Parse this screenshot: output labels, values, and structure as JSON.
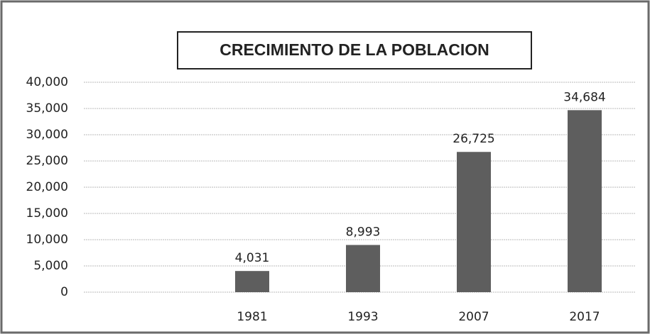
{
  "chart_data": {
    "type": "bar",
    "title": "CRECIMIENTO DE LA POBLACION",
    "categories": [
      "1981",
      "1993",
      "2007",
      "2017"
    ],
    "values": [
      4031,
      8993,
      26725,
      34684
    ],
    "value_labels": [
      "4,031",
      "8,993",
      "26,725",
      "34,684"
    ],
    "color": "#5e5e5e",
    "ylim": [
      0,
      40000
    ],
    "yticks": [
      0,
      {
        "value": 5000,
        "label": "5,000"
      },
      {
        "value": 10000,
        "label": "10,000"
      },
      {
        "value": 15000,
        "label": "15,000"
      },
      {
        "value": 20000,
        "label": "20,000"
      },
      {
        "value": 25000,
        "label": "25,000"
      },
      {
        "value": 30000,
        "label": "30,000"
      },
      {
        "value": 35000,
        "label": "35,000"
      },
      {
        "value": 40000,
        "label": "40,000"
      }
    ],
    "grid": true
  }
}
